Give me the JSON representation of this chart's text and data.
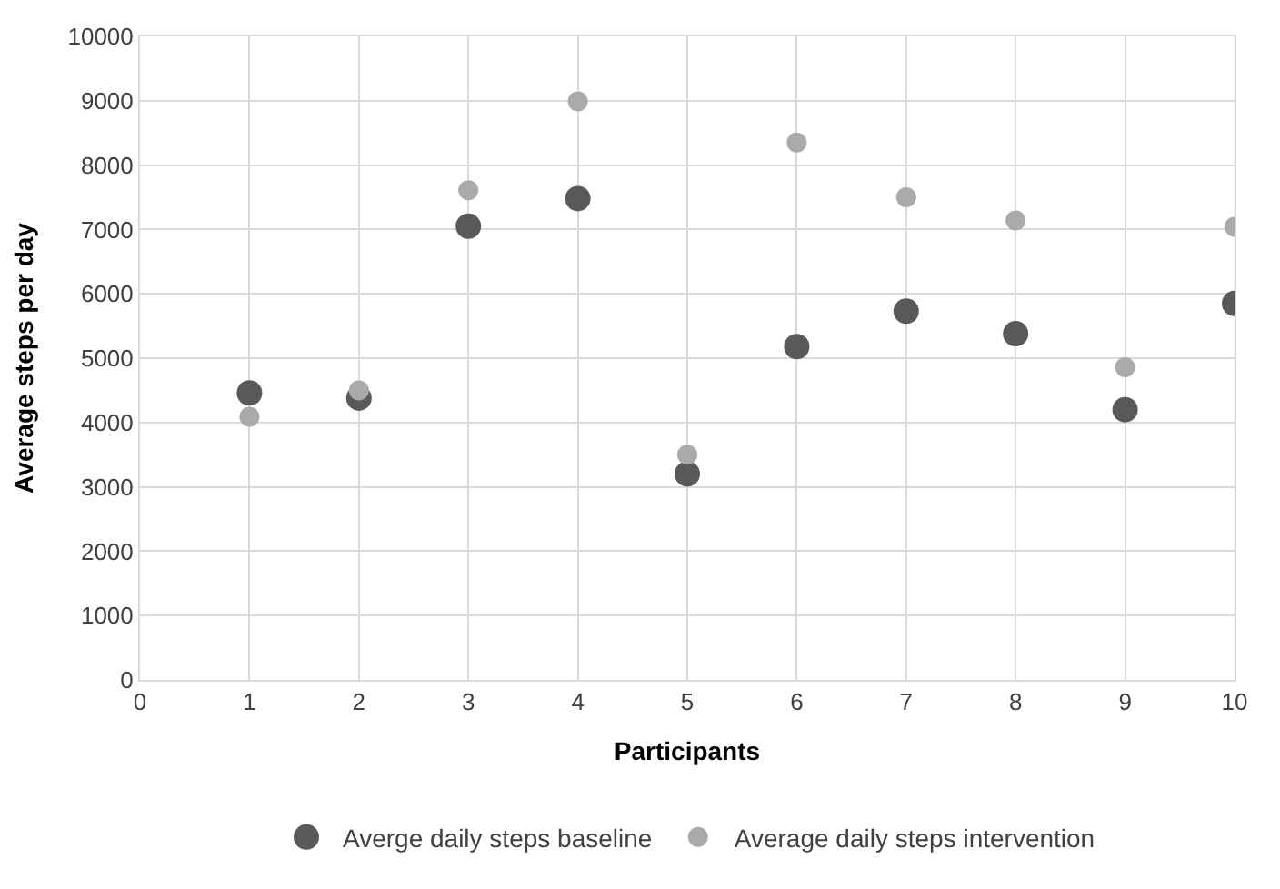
{
  "chart_data": {
    "type": "scatter",
    "xlabel": "Participants",
    "ylabel": "Average steps per day",
    "x": [
      1,
      2,
      3,
      4,
      5,
      6,
      7,
      8,
      9,
      10
    ],
    "series": [
      {
        "name": "Averge daily steps baseline",
        "color": "#595959",
        "values": [
          4460,
          4380,
          7050,
          7480,
          3200,
          5180,
          5730,
          5380,
          4200,
          5850
        ]
      },
      {
        "name": "Average daily steps intervention",
        "color": "#aaaaaa",
        "values": [
          4090,
          4500,
          7610,
          8990,
          3500,
          8350,
          7500,
          7140,
          4860,
          7040
        ]
      }
    ],
    "xlim": [
      0,
      10
    ],
    "xticks": [
      0,
      1,
      2,
      3,
      4,
      5,
      6,
      7,
      8,
      9,
      10
    ],
    "ylim": [
      0,
      10000
    ],
    "yticks": [
      0,
      1000,
      2000,
      3000,
      4000,
      5000,
      6000,
      7000,
      8000,
      9000,
      10000
    ],
    "grid": true,
    "legend": "bottom",
    "marker": "circle"
  }
}
